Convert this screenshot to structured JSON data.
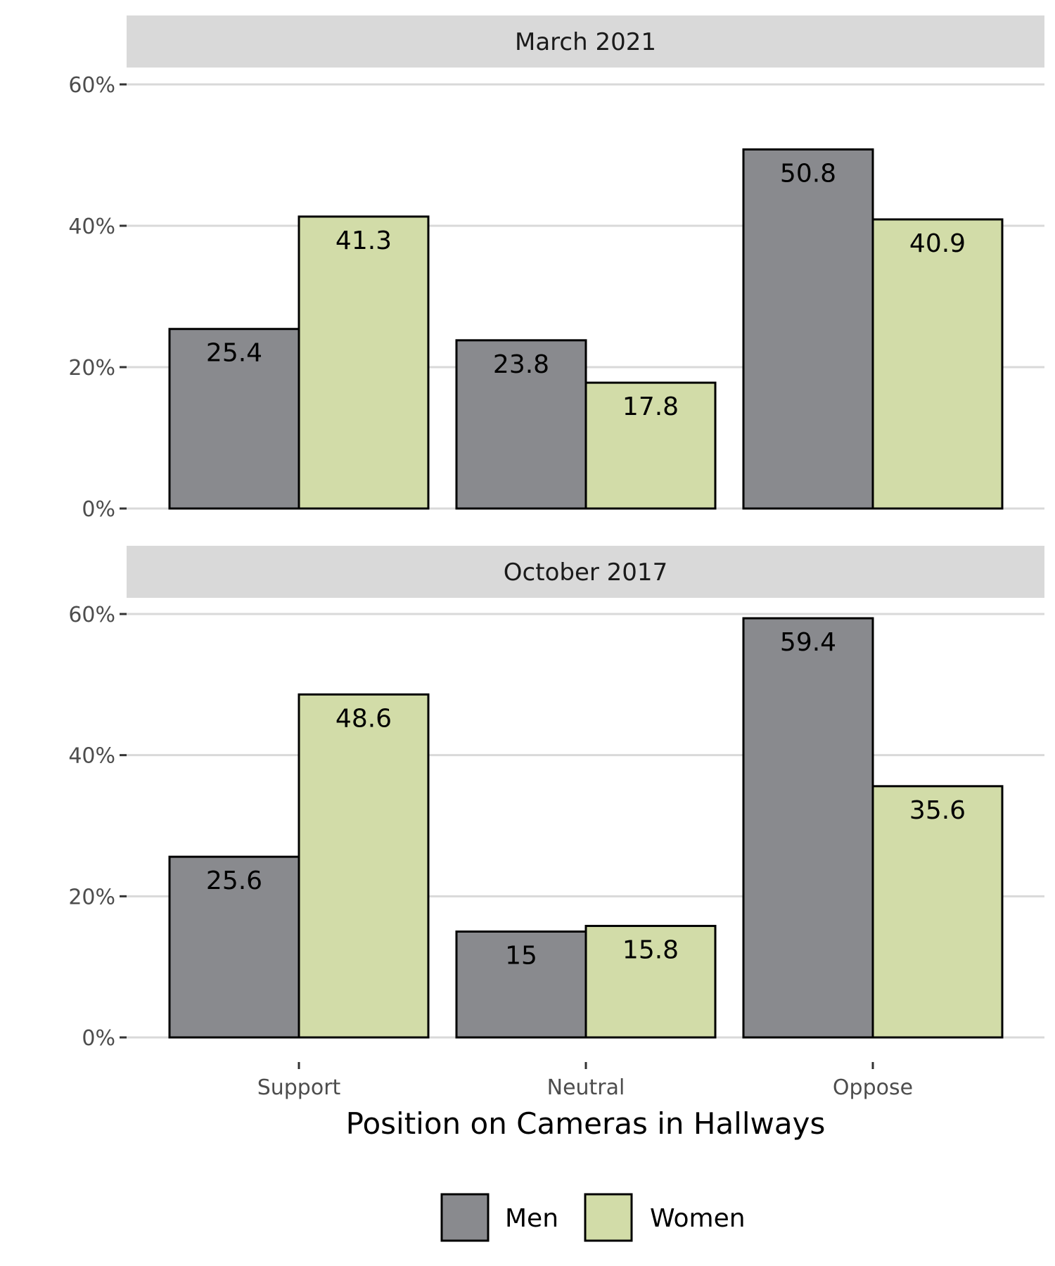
{
  "chart_data": {
    "type": "bar",
    "xlabel": "Position on Cameras in Hallways",
    "ylabel": "",
    "ylim": [
      0,
      60
    ],
    "yticks": [
      "0%",
      "20%",
      "40%",
      "60%"
    ],
    "ytick_values": [
      0,
      20,
      40,
      60
    ],
    "categories": [
      "Support",
      "Neutral",
      "Oppose"
    ],
    "legend": {
      "placement": "bottom",
      "entries": [
        {
          "name": "Men",
          "color": "#898a8e"
        },
        {
          "name": "Women",
          "color": "#d2dca8"
        }
      ]
    },
    "grid": true,
    "panels": [
      {
        "title": "March 2021",
        "series": [
          {
            "name": "Men",
            "values": [
              25.4,
              23.8,
              50.8
            ],
            "labels": [
              "25.4",
              "23.8",
              "50.8"
            ]
          },
          {
            "name": "Women",
            "values": [
              41.3,
              17.8,
              40.9
            ],
            "labels": [
              "41.3",
              "17.8",
              "40.9"
            ]
          }
        ]
      },
      {
        "title": "October 2017",
        "series": [
          {
            "name": "Men",
            "values": [
              25.6,
              15,
              59.4
            ],
            "labels": [
              "25.6",
              "15",
              "59.4"
            ]
          },
          {
            "name": "Women",
            "values": [
              48.6,
              15.8,
              35.6
            ],
            "labels": [
              "48.6",
              "15.8",
              "35.6"
            ]
          }
        ]
      }
    ]
  },
  "colors": {
    "men": "#898a8e",
    "women": "#d2dca8",
    "strip": "#d9d9d9",
    "grid": "#d9d9d9"
  }
}
